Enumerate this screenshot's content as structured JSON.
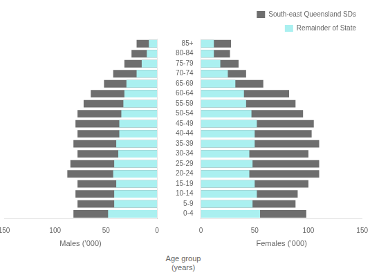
{
  "chart_data": [
    {
      "type": "bar",
      "orientation": "horizontal",
      "categories": [
        "0-4",
        "5-9",
        "10-14",
        "15-19",
        "20-24",
        "25-29",
        "30-34",
        "35-39",
        "40-44",
        "45-49",
        "50-54",
        "55-59",
        "60-64",
        "65-69",
        "70-74",
        "75-79",
        "80-84",
        "85+"
      ],
      "series": [
        {
          "name": "South-east Queensland SDs",
          "color": "#6e6e6e",
          "values": [
            82,
            78,
            80,
            78,
            88,
            85,
            78,
            82,
            78,
            80,
            78,
            72,
            65,
            52,
            43,
            32,
            25,
            20
          ]
        },
        {
          "name": "Remainder of State",
          "color": "#aaf0f0",
          "values": [
            48,
            42,
            42,
            40,
            43,
            42,
            38,
            40,
            37,
            37,
            35,
            33,
            32,
            30,
            20,
            15,
            10,
            8
          ]
        }
      ],
      "xlabel": "Males (’000)",
      "xlim": [
        150,
        0
      ],
      "xticks": [
        0,
        50,
        100,
        150
      ],
      "grid": false,
      "tick_labels": "x"
    },
    {
      "type": "bar",
      "orientation": "horizontal",
      "categories": [
        "0-4",
        "5-9",
        "10-14",
        "15-19",
        "20-24",
        "25-29",
        "30-34",
        "35-39",
        "40-44",
        "45-49",
        "50-54",
        "55-59",
        "60-64",
        "65-69",
        "70-74",
        "75-79",
        "80-84",
        "85+"
      ],
      "series": [
        {
          "name": "South-east Queensland SDs",
          "color": "#6e6e6e",
          "values": [
            98,
            88,
            90,
            100,
            110,
            110,
            100,
            110,
            103,
            105,
            95,
            88,
            82,
            58,
            42,
            35,
            27,
            28
          ]
        },
        {
          "name": "Remainder of State",
          "color": "#aaf0f0",
          "values": [
            55,
            48,
            52,
            50,
            45,
            48,
            45,
            50,
            50,
            52,
            47,
            42,
            40,
            32,
            25,
            18,
            12,
            12
          ]
        }
      ],
      "xlabel": "Females (’000)",
      "ylabel": "Age group\n(years)",
      "xlim": [
        0,
        150
      ],
      "xticks": [
        0,
        50,
        100,
        150
      ],
      "grid": false,
      "legend": "upper right"
    }
  ]
}
